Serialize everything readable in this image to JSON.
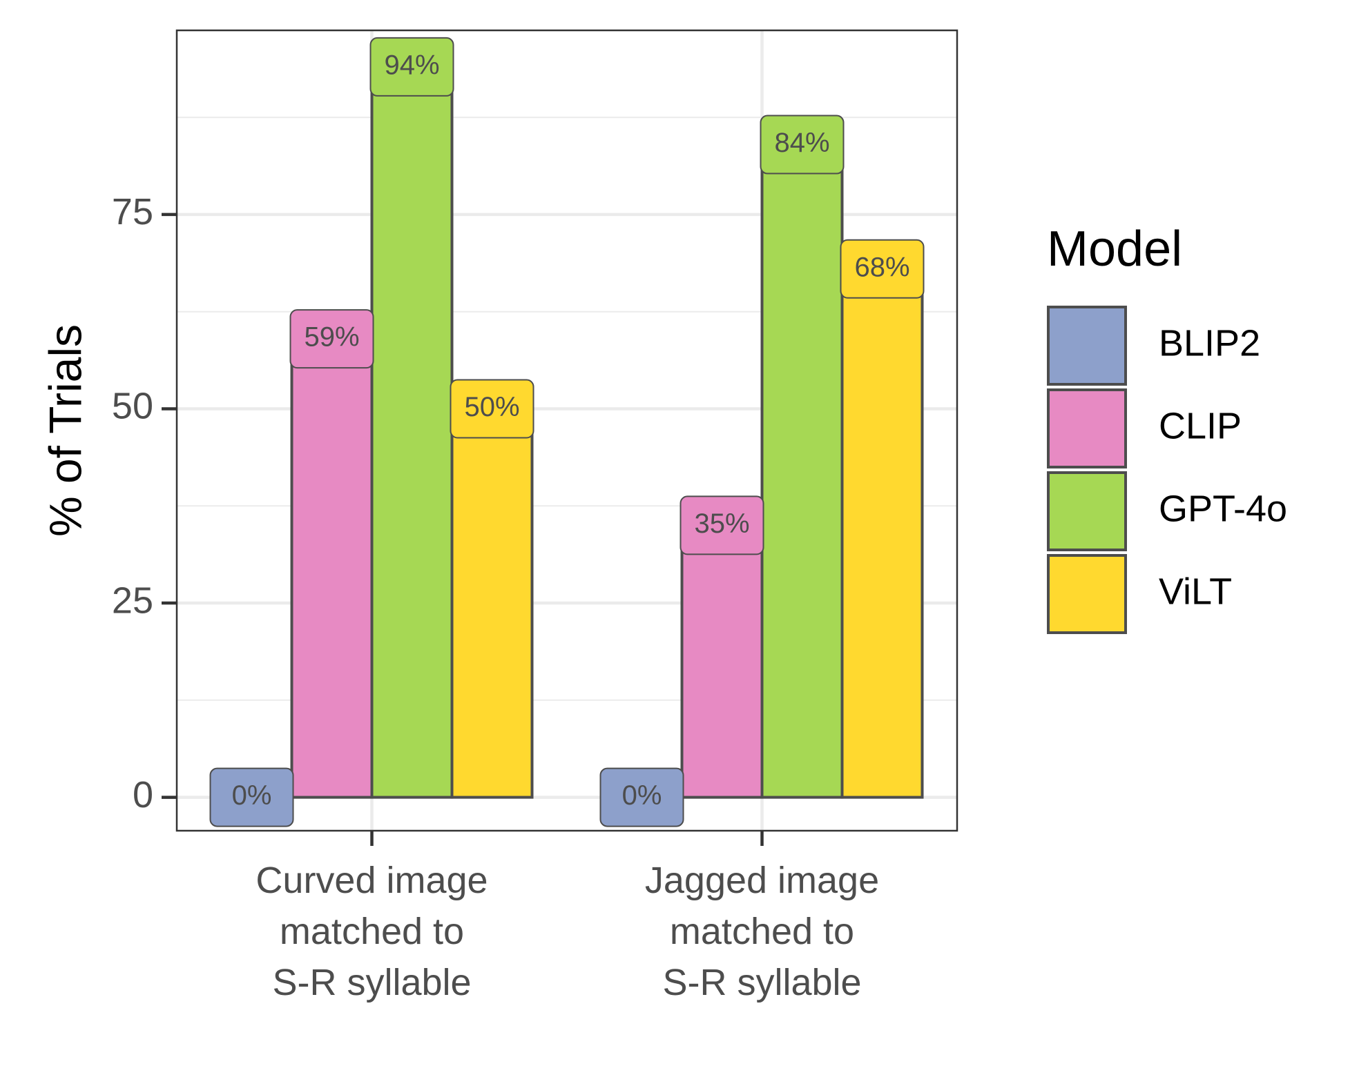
{
  "chart_data": {
    "type": "bar",
    "categories": [
      [
        "Curved image",
        "matched to",
        "S-R syllable"
      ],
      [
        "Jagged image",
        "matched to",
        "S-R syllable"
      ]
    ],
    "series": [
      {
        "name": "BLIP2",
        "color": "#8DA0CB",
        "values": [
          0,
          0
        ],
        "labels": [
          "0%",
          "0%"
        ]
      },
      {
        "name": "CLIP",
        "color": "#E78AC3",
        "values": [
          59,
          35
        ],
        "labels": [
          "59%",
          "35%"
        ]
      },
      {
        "name": "GPT-4o",
        "color": "#A6D854",
        "values": [
          94,
          84
        ],
        "labels": [
          "94%",
          "84%"
        ]
      },
      {
        "name": "ViLT",
        "color": "#FFD92F",
        "values": [
          50,
          68
        ],
        "labels": [
          "50%",
          "68%"
        ]
      }
    ],
    "ylabel": "% of Trials",
    "xlabel": "",
    "yticks": [
      0,
      25,
      50,
      75
    ],
    "ylim": [
      -4.3,
      98.7
    ],
    "grid": true,
    "legend": {
      "title": "Model",
      "position": "right"
    }
  }
}
